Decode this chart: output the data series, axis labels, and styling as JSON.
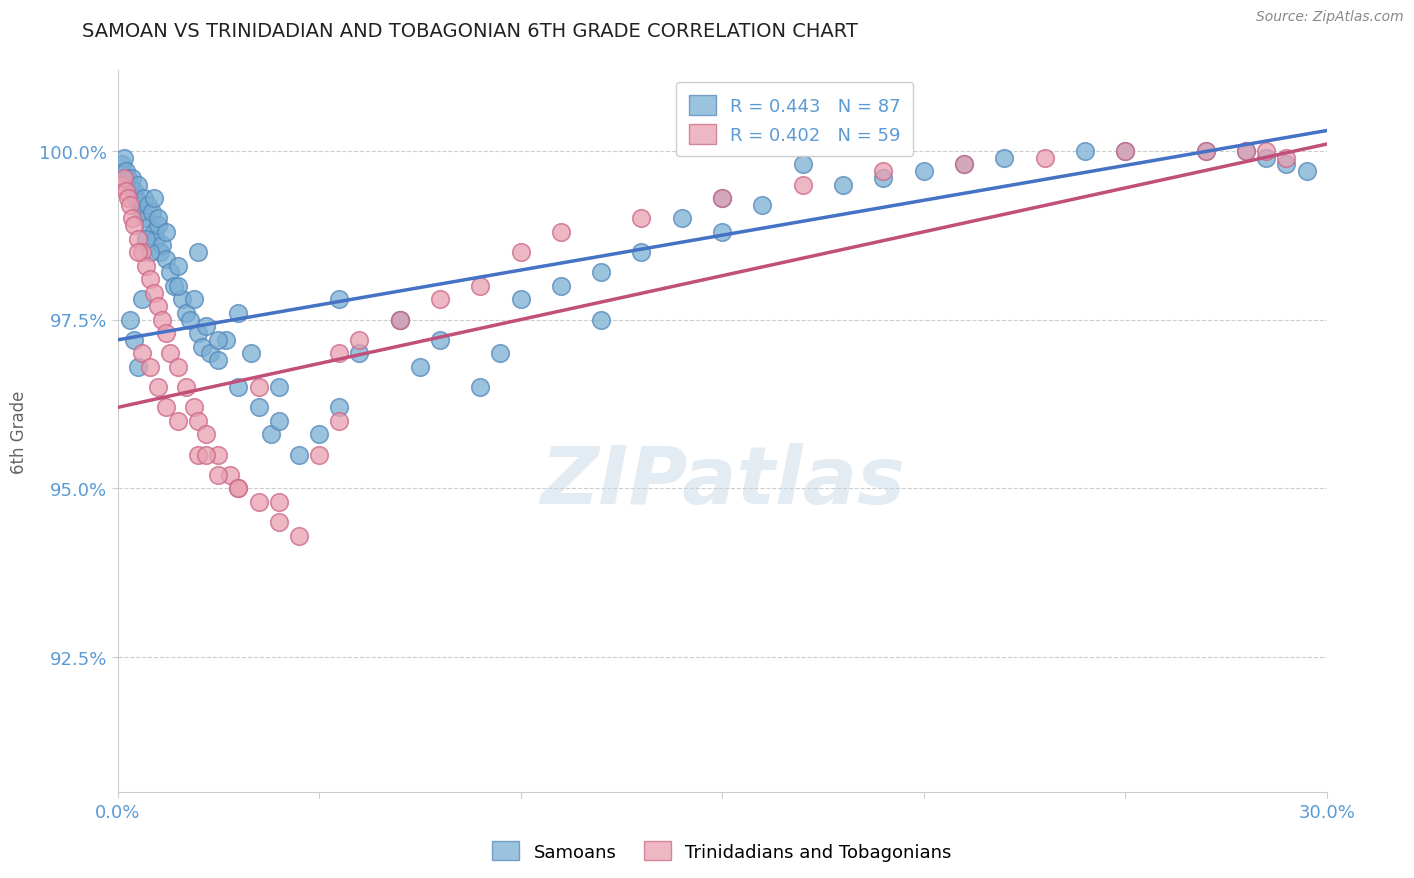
{
  "title": "SAMOAN VS TRINIDADIAN AND TOBAGONIAN 6TH GRADE CORRELATION CHART",
  "source_text": "Source: ZipAtlas.com",
  "ylabel": "6th Grade",
  "xlim": [
    0.0,
    30.0
  ],
  "ylim": [
    90.5,
    101.2
  ],
  "yticks": [
    92.5,
    95.0,
    97.5,
    100.0
  ],
  "ytick_labels": [
    "92.5%",
    "95.0%",
    "97.5%",
    "100.0%"
  ],
  "xtick_positions": [
    0,
    5,
    10,
    15,
    20,
    25,
    30
  ],
  "xtick_labels": [
    "0.0%",
    "",
    "",
    "",
    "",
    "",
    "30.0%"
  ],
  "blue_color": "#7bafd4",
  "blue_edge": "#5588bb",
  "pink_color": "#e8a0b0",
  "pink_edge": "#cc6688",
  "blue_line_color": "#4472c4",
  "pink_line_color": "#c0507a",
  "axis_color": "#5b9bd5",
  "bottom_legend_blue": "Samoans",
  "bottom_legend_pink": "Trinidadians and Tobagonians",
  "watermark": "ZIPatlas",
  "blue_x": [
    0.1,
    0.15,
    0.2,
    0.25,
    0.3,
    0.35,
    0.4,
    0.45,
    0.5,
    0.55,
    0.6,
    0.65,
    0.7,
    0.75,
    0.8,
    0.85,
    0.9,
    0.95,
    1.0,
    1.05,
    1.1,
    1.2,
    1.3,
    1.4,
    1.5,
    1.6,
    1.7,
    1.8,
    1.9,
    2.0,
    2.1,
    2.2,
    2.3,
    2.5,
    2.7,
    3.0,
    3.3,
    3.5,
    3.8,
    4.0,
    4.5,
    5.0,
    5.5,
    6.0,
    7.0,
    7.5,
    8.0,
    9.0,
    10.0,
    11.0,
    12.0,
    13.0,
    14.0,
    15.0,
    16.0,
    18.0,
    19.0,
    20.0,
    21.0,
    22.0,
    24.0,
    25.0,
    27.0,
    28.0,
    28.5,
    29.0,
    29.5,
    0.3,
    0.4,
    0.5,
    0.6,
    0.8,
    1.0,
    1.2,
    1.5,
    2.0,
    2.5,
    3.0,
    4.0,
    5.5,
    7.0,
    9.5,
    12.0,
    15.0,
    17.0,
    0.7,
    0.9
  ],
  "blue_y": [
    99.8,
    99.9,
    99.7,
    99.6,
    99.5,
    99.6,
    99.4,
    99.3,
    99.5,
    99.2,
    99.1,
    99.3,
    99.0,
    99.2,
    98.9,
    99.1,
    98.8,
    98.7,
    98.9,
    98.5,
    98.6,
    98.4,
    98.2,
    98.0,
    98.3,
    97.8,
    97.6,
    97.5,
    97.8,
    97.3,
    97.1,
    97.4,
    97.0,
    96.9,
    97.2,
    96.5,
    97.0,
    96.2,
    95.8,
    96.0,
    95.5,
    95.8,
    96.2,
    97.0,
    97.5,
    96.8,
    97.2,
    96.5,
    97.8,
    98.0,
    97.5,
    98.5,
    99.0,
    98.8,
    99.2,
    99.5,
    99.6,
    99.7,
    99.8,
    99.9,
    100.0,
    100.0,
    100.0,
    100.0,
    99.9,
    99.8,
    99.7,
    97.5,
    97.2,
    96.8,
    97.8,
    98.5,
    99.0,
    98.8,
    98.0,
    98.5,
    97.2,
    97.6,
    96.5,
    97.8,
    97.5,
    97.0,
    98.2,
    99.3,
    99.8,
    98.7,
    99.3
  ],
  "pink_x": [
    0.1,
    0.15,
    0.2,
    0.25,
    0.3,
    0.35,
    0.4,
    0.5,
    0.6,
    0.7,
    0.8,
    0.9,
    1.0,
    1.1,
    1.2,
    1.3,
    1.5,
    1.7,
    1.9,
    2.0,
    2.2,
    2.5,
    2.8,
    3.0,
    3.5,
    4.0,
    4.5,
    5.0,
    5.5,
    6.0,
    7.0,
    8.0,
    9.0,
    10.0,
    11.0,
    13.0,
    15.0,
    17.0,
    19.0,
    21.0,
    23.0,
    25.0,
    27.0,
    28.0,
    28.5,
    29.0,
    0.6,
    0.8,
    1.0,
    1.2,
    1.5,
    2.0,
    2.5,
    3.0,
    4.0,
    3.5,
    5.5,
    0.5,
    2.2
  ],
  "pink_y": [
    99.5,
    99.6,
    99.4,
    99.3,
    99.2,
    99.0,
    98.9,
    98.7,
    98.5,
    98.3,
    98.1,
    97.9,
    97.7,
    97.5,
    97.3,
    97.0,
    96.8,
    96.5,
    96.2,
    96.0,
    95.8,
    95.5,
    95.2,
    95.0,
    94.8,
    94.5,
    94.3,
    95.5,
    96.0,
    97.2,
    97.5,
    97.8,
    98.0,
    98.5,
    98.8,
    99.0,
    99.3,
    99.5,
    99.7,
    99.8,
    99.9,
    100.0,
    100.0,
    100.0,
    100.0,
    99.9,
    97.0,
    96.8,
    96.5,
    96.2,
    96.0,
    95.5,
    95.2,
    95.0,
    94.8,
    96.5,
    97.0,
    98.5,
    95.5
  ],
  "blue_trend_x0": 0.0,
  "blue_trend_x1": 30.0,
  "blue_trend_y0": 97.2,
  "blue_trend_y1": 100.3,
  "pink_trend_x0": 0.0,
  "pink_trend_x1": 30.0,
  "pink_trend_y0": 96.2,
  "pink_trend_y1": 100.1
}
